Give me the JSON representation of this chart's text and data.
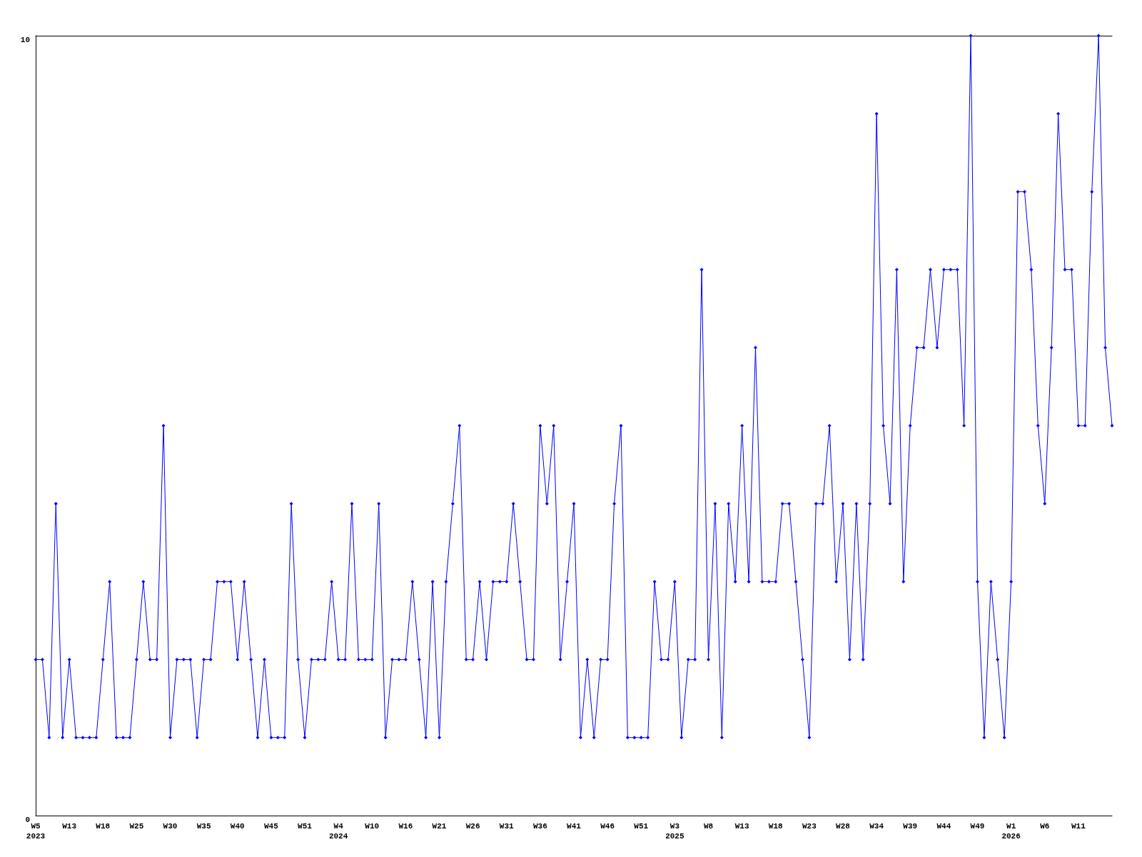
{
  "chart_data": {
    "type": "line",
    "categories": [
      "W5\n2023",
      null,
      null,
      null,
      null,
      "W13",
      null,
      null,
      null,
      null,
      "W18",
      null,
      null,
      null,
      null,
      "W25",
      null,
      null,
      null,
      null,
      "W30",
      null,
      null,
      null,
      null,
      "W35",
      null,
      null,
      null,
      null,
      "W40",
      null,
      null,
      null,
      null,
      "W45",
      null,
      null,
      null,
      null,
      "W51",
      null,
      null,
      null,
      null,
      "W4\n2024",
      null,
      null,
      null,
      null,
      "W10",
      null,
      null,
      null,
      null,
      "W16",
      null,
      null,
      null,
      null,
      "W21",
      null,
      null,
      null,
      null,
      "W26",
      null,
      null,
      null,
      null,
      "W31",
      null,
      null,
      null,
      null,
      "W36",
      null,
      null,
      null,
      null,
      "W41",
      null,
      null,
      null,
      null,
      "W46",
      null,
      null,
      null,
      null,
      "W51",
      null,
      null,
      null,
      null,
      "W3\n2025",
      null,
      null,
      null,
      null,
      "W8",
      null,
      null,
      null,
      null,
      "W13",
      null,
      null,
      null,
      null,
      "W18",
      null,
      null,
      null,
      null,
      "W23",
      null,
      null,
      null,
      null,
      "W28",
      null,
      null,
      null,
      null,
      "W34",
      null,
      null,
      null,
      null,
      "W39",
      null,
      null,
      null,
      null,
      "W44",
      null,
      null,
      null,
      null,
      "W49",
      null,
      null,
      null,
      null,
      "W1\n2026",
      null,
      null,
      null,
      null,
      "W6",
      null,
      null,
      null,
      null,
      "W11",
      null,
      null,
      null,
      null,
      null
    ],
    "series": [
      {
        "color": "#0000ff",
        "values": [
          2,
          2,
          1,
          4,
          1,
          2,
          1,
          1,
          1,
          1,
          2,
          3,
          1,
          1,
          1,
          2,
          3,
          2,
          2,
          5,
          1,
          2,
          2,
          2,
          1,
          2,
          2,
          3,
          3,
          3,
          2,
          3,
          2,
          1,
          2,
          1,
          1,
          1,
          4,
          2,
          1,
          2,
          2,
          2,
          3,
          2,
          2,
          4,
          2,
          2,
          2,
          4,
          1,
          2,
          2,
          2,
          3,
          2,
          1,
          3,
          1,
          3,
          4,
          5,
          2,
          2,
          3,
          2,
          3,
          3,
          3,
          4,
          3,
          2,
          2,
          5,
          4,
          5,
          2,
          3,
          4,
          1,
          2,
          1,
          2,
          2,
          4,
          5,
          1,
          1,
          1,
          1,
          3,
          2,
          2,
          3,
          1,
          2,
          2,
          7,
          2,
          4,
          1,
          4,
          3,
          5,
          3,
          6,
          3,
          3,
          3,
          4,
          4,
          3,
          2,
          1,
          4,
          4,
          5,
          3,
          4,
          2,
          4,
          2,
          4,
          9,
          5,
          4,
          7,
          3,
          5,
          6,
          6,
          7,
          6,
          7,
          7,
          7,
          5,
          10,
          3,
          1,
          3,
          2,
          1,
          3,
          8,
          8,
          7,
          5,
          4,
          6,
          9,
          7,
          7,
          5,
          5,
          8,
          10,
          6,
          5
        ]
      }
    ],
    "ylim": [
      0,
      10
    ],
    "yticks": [
      0,
      10
    ],
    "grid": false,
    "marker": "diamond",
    "line_style": "solid"
  }
}
